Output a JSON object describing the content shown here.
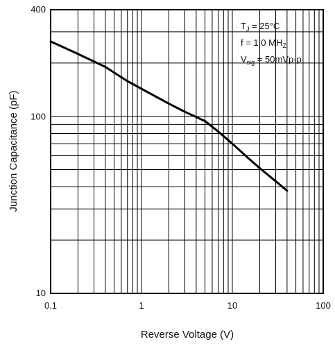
{
  "chart_data": {
    "type": "line",
    "title": "",
    "xlabel": "Reverse Voltage (V)",
    "ylabel": "Junction Capacitance (pF)",
    "x_scale": "log",
    "y_scale": "log",
    "xlim": [
      0.1,
      100
    ],
    "ylim": [
      10,
      400
    ],
    "grid": true,
    "x_ticks": [
      "0.1",
      "1",
      "10",
      "100"
    ],
    "y_ticks": [
      "10",
      "100",
      "400"
    ],
    "series": [
      {
        "name": "",
        "x": [
          0.1,
          0.2,
          0.4,
          0.7,
          1,
          2,
          3,
          5,
          7,
          10,
          15,
          20,
          30,
          40
        ],
        "y": [
          265,
          225,
          190,
          158,
          143,
          118,
          106,
          94,
          82,
          70,
          58,
          51,
          43,
          38
        ]
      }
    ],
    "annotations": {
      "tj_main": "T",
      "tj_sub": "J",
      "tj_rest": " = 25°C",
      "freq_main": "f = 1.0 MH",
      "freq_sub": "Z",
      "vsig_main": "V",
      "vsig_sub": "sig",
      "vsig_rest": " = 50mVp-p"
    }
  }
}
